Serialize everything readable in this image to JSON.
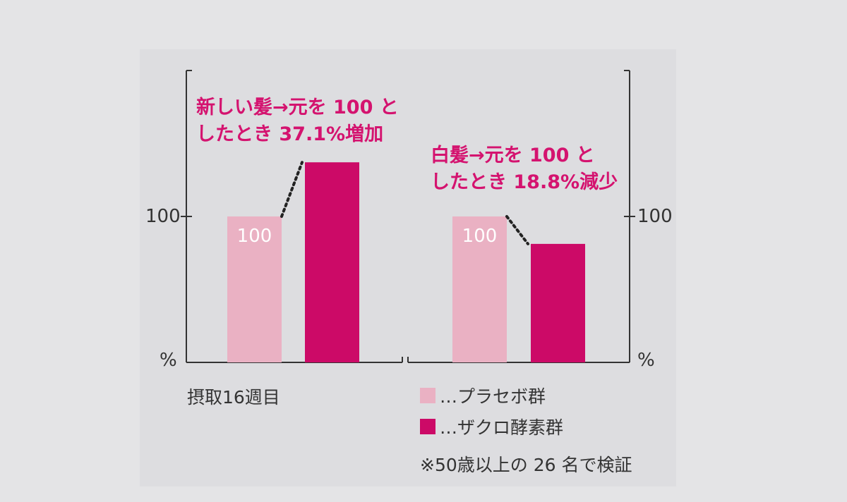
{
  "chart_data": [
    {
      "type": "bar",
      "title": "",
      "categories": [
        "プラセボ群",
        "ザクロ酵素群"
      ],
      "values": [
        100,
        137.1
      ],
      "ylim": [
        0,
        195
      ],
      "ytick": "100",
      "yunit": "%",
      "bar_label": "100",
      "annotation": [
        "新しい髪→元を 100 と",
        "したとき 37.1%増加"
      ]
    },
    {
      "type": "bar",
      "title": "",
      "categories": [
        "プラセボ群",
        "ザクロ酵素群"
      ],
      "values": [
        100,
        81.2
      ],
      "ylim": [
        0,
        195
      ],
      "ytick": "100",
      "yunit": "%",
      "bar_label": "100",
      "annotation": [
        "白髪→元を 100 と",
        "したとき 18.8%減少"
      ]
    }
  ],
  "footer": {
    "period": "摂取16週目",
    "note": "※50歳以上の 26 名で検証"
  },
  "legend": [
    {
      "label": "…プラセボ群",
      "color": "#eab1c3"
    },
    {
      "label": "…ザクロ酵素群",
      "color": "#cc0a67"
    }
  ],
  "colors": {
    "placebo": "#eab1c3",
    "treatment": "#cc0a67",
    "annotation": "#d4136f",
    "axis": "#333333"
  }
}
